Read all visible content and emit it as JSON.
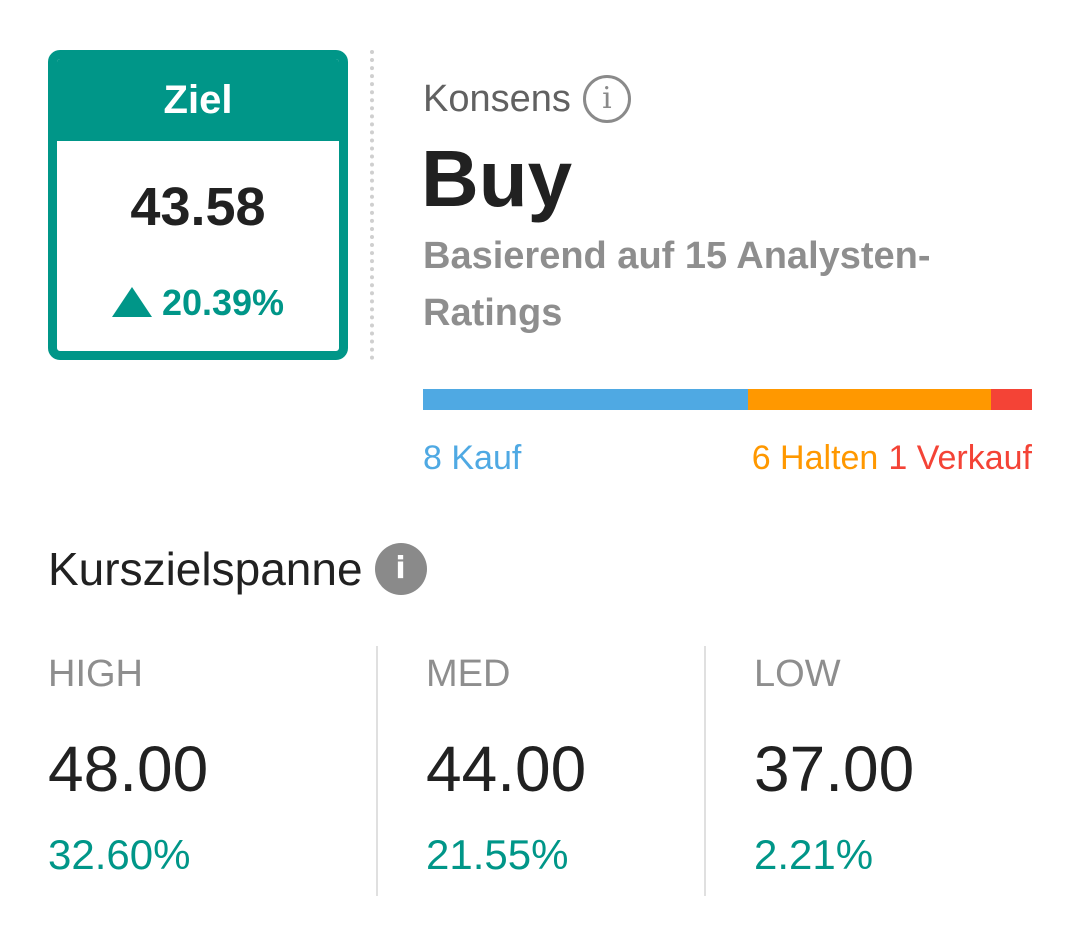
{
  "target": {
    "header": "Ziel",
    "value": "43.58",
    "change": "20.39%"
  },
  "consensus": {
    "label": "Konsens",
    "value": "Buy",
    "basis": "Basierend auf 15 Analysten-Ratings"
  },
  "ratings": {
    "buy_label": "8 Kauf",
    "hold_label": "6 Halten",
    "sell_label": "1 Verkauf",
    "buy_count": 8,
    "hold_count": 6,
    "sell_count": 1,
    "colors": {
      "buy": "#4fa9e3",
      "hold": "#ff9800",
      "sell": "#f44336"
    }
  },
  "price_range": {
    "title": "Kurszielspanne",
    "high": {
      "label": "HIGH",
      "value": "48.00",
      "change": "32.60%"
    },
    "med": {
      "label": "MED",
      "value": "44.00",
      "change": "21.55%"
    },
    "low": {
      "label": "LOW",
      "value": "37.00",
      "change": "2.21%"
    }
  },
  "icons": {
    "consensus_info": "info-outline-icon",
    "range_info": "info-filled-icon",
    "change_up": "triangle-up-icon"
  },
  "accent_color": "#009688"
}
